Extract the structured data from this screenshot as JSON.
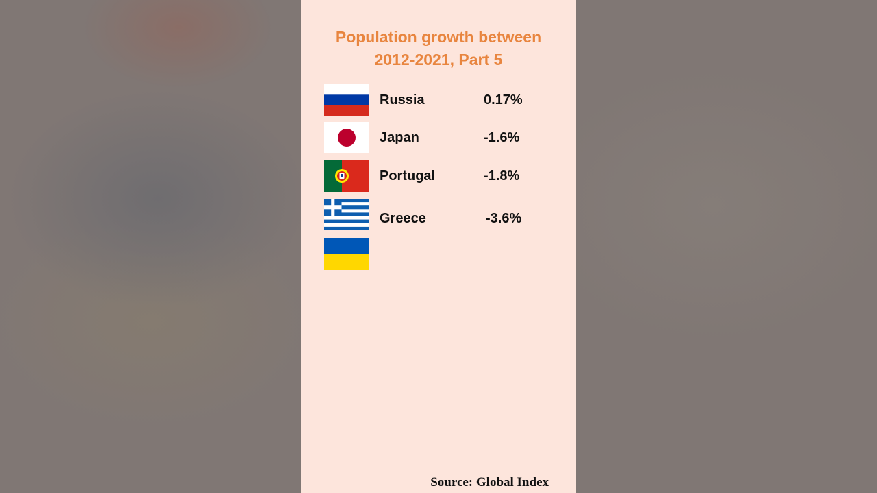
{
  "title_lines": [
    "Population growth between",
    "2012-2021, Part 5"
  ],
  "rows": [
    {
      "country": "Russia",
      "value": "0.17%",
      "flag_icon": "russia-flag-icon",
      "colors": [
        "#ffffff",
        "#0039a6",
        "#d52b1e"
      ]
    },
    {
      "country": "Japan",
      "value": "-1.6%",
      "flag_icon": "japan-flag-icon",
      "colors": [
        "#ffffff",
        "#bc002d"
      ]
    },
    {
      "country": "Portugal",
      "value": "-1.8%",
      "flag_icon": "portugal-flag-icon",
      "colors": [
        "#046a38",
        "#da291c",
        "#ffe900"
      ]
    },
    {
      "country": "Greece",
      "value": "-3.6%",
      "flag_icon": "greece-flag-icon",
      "colors": [
        "#0d5eaf",
        "#ffffff"
      ]
    }
  ],
  "pending_flag": {
    "flag_icon": "ukraine-flag-icon",
    "colors": [
      "#0057b7",
      "#ffd700"
    ]
  },
  "source": "Source: Global Index",
  "colors": {
    "panel_background": "#fde5dc",
    "title": "#e8853f",
    "text": "#111111",
    "backdrop": "#807774"
  }
}
